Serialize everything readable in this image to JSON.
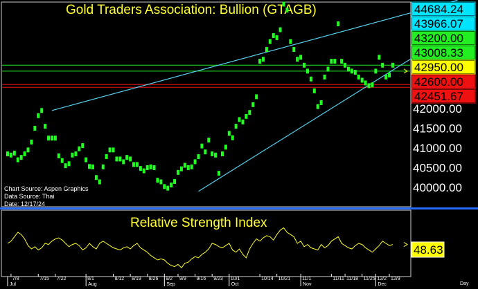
{
  "chart_data": [
    {
      "type": "scatter",
      "title": "Gold Traders Association: Bullion (GTAGB)",
      "ylim": [
        39800,
        44800
      ],
      "yticks": [
        "40000.00",
        "40500.00",
        "41000.00",
        "41500.00",
        "42000.00"
      ],
      "levels": [
        {
          "label": "44684.24",
          "value": 44684.24,
          "bg": "#00e5ff",
          "fg": "#000000"
        },
        {
          "label": "43966.07",
          "value": 43966.07,
          "bg": "#00e5ff",
          "fg": "#000000"
        },
        {
          "label": "43200.00",
          "value": 43200.0,
          "bg": "#22ee22",
          "fg": "#000000"
        },
        {
          "label": "43008.33",
          "value": 43008.33,
          "bg": "#22ee22",
          "fg": "#000000"
        },
        {
          "label": "42950.00",
          "value": 42950.0,
          "bg": "#ffff00",
          "fg": "#000000"
        },
        {
          "label": "42600.00",
          "value": 42600.0,
          "bg": "#ee1111",
          "fg": "#000000"
        },
        {
          "label": "42451.67",
          "value": 42451.67,
          "bg": "#ee1111",
          "fg": "#000000"
        }
      ],
      "hlines": [
        {
          "value": 43100,
          "color": "#22ee22"
        },
        {
          "value": 42950,
          "color": "#22ee22"
        },
        {
          "value": 42610,
          "color": "#ee1111"
        },
        {
          "value": 42540,
          "color": "#ee1111"
        }
      ],
      "trendlines": [
        {
          "x1": 13,
          "y1": 41950,
          "x2": 132,
          "y2": 44750,
          "color": "#5ad0f0"
        },
        {
          "x1": 56,
          "y1": 39900,
          "x2": 132,
          "y2": 44000,
          "color": "#5ad0f0"
        }
      ],
      "x_dates": [
        "7/8",
        "7/15",
        "7/22",
        "8/1",
        "8/12",
        "8/19",
        "8/26",
        "9/2",
        "9/9",
        "9/16",
        "9/23",
        "10/1",
        "10/14",
        "10/21",
        "11/1",
        "11/11",
        "11/18",
        "11/25",
        "12/2",
        "12/9"
      ],
      "x_date_index": [
        1,
        9,
        14,
        23,
        31,
        36,
        41,
        46,
        50,
        55,
        60,
        65,
        74,
        79,
        86,
        95,
        99,
        104,
        108,
        112
      ],
      "x_months": [
        "Jul",
        "Aug",
        "Sep",
        "Oct",
        "Nov",
        "Dec"
      ],
      "x_month_index": [
        0,
        23,
        46,
        65,
        86,
        108
      ],
      "x_unit": "Day",
      "points": [
        [
          0,
          40850
        ],
        [
          1,
          40820
        ],
        [
          2,
          40870
        ],
        [
          3,
          40700
        ],
        [
          4,
          40760
        ],
        [
          5,
          40850
        ],
        [
          6,
          40950
        ],
        [
          7,
          41150
        ],
        [
          8,
          41500
        ],
        [
          9,
          41820
        ],
        [
          10,
          41950
        ],
        [
          11,
          41550
        ],
        [
          12,
          41250
        ],
        [
          13,
          41250
        ],
        [
          14,
          41250
        ],
        [
          15,
          40800
        ],
        [
          16,
          40680
        ],
        [
          17,
          40550
        ],
        [
          18,
          40600
        ],
        [
          19,
          40820
        ],
        [
          20,
          40850
        ],
        [
          21,
          40980
        ],
        [
          22,
          41060
        ],
        [
          23,
          40700
        ],
        [
          24,
          40530
        ],
        [
          25,
          40520
        ],
        [
          26,
          40250
        ],
        [
          27,
          40140
        ],
        [
          28,
          40520
        ],
        [
          29,
          40780
        ],
        [
          30,
          40950
        ],
        [
          31,
          40950
        ],
        [
          32,
          40720
        ],
        [
          33,
          40720
        ],
        [
          34,
          40650
        ],
        [
          35,
          40760
        ],
        [
          36,
          40720
        ],
        [
          37,
          40580
        ],
        [
          38,
          40580
        ],
        [
          39,
          40480
        ],
        [
          40,
          40420
        ],
        [
          41,
          40500
        ],
        [
          42,
          40520
        ],
        [
          43,
          40500
        ],
        [
          44,
          40180
        ],
        [
          45,
          40140
        ],
        [
          46,
          40020
        ],
        [
          47,
          39980
        ],
        [
          48,
          40060
        ],
        [
          49,
          40150
        ],
        [
          50,
          40380
        ],
        [
          51,
          40470
        ],
        [
          52,
          40560
        ],
        [
          53,
          40500
        ],
        [
          54,
          40520
        ],
        [
          55,
          40650
        ],
        [
          56,
          40780
        ],
        [
          57,
          41050
        ],
        [
          58,
          40900
        ],
        [
          59,
          41200
        ],
        [
          60,
          40850
        ],
        [
          61,
          40820
        ],
        [
          62,
          40360
        ],
        [
          63,
          40850
        ],
        [
          64,
          41020
        ],
        [
          65,
          41370
        ],
        [
          66,
          41260
        ],
        [
          67,
          41550
        ],
        [
          68,
          41720
        ],
        [
          69,
          41660
        ],
        [
          70,
          41800
        ],
        [
          71,
          41900
        ],
        [
          72,
          42100
        ],
        [
          73,
          42300
        ],
        [
          74,
          43200
        ],
        [
          75,
          43250
        ],
        [
          76,
          43500
        ],
        [
          77,
          43700
        ],
        [
          78,
          43850
        ],
        [
          79,
          43800
        ],
        [
          80,
          44000
        ],
        [
          81,
          44650
        ],
        [
          82,
          44500
        ],
        [
          83,
          43700
        ],
        [
          84,
          43500
        ],
        [
          85,
          43250
        ],
        [
          86,
          43300
        ],
        [
          87,
          43100
        ],
        [
          88,
          42950
        ],
        [
          89,
          42750
        ],
        [
          90,
          42450
        ],
        [
          91,
          42050
        ],
        [
          92,
          42150
        ],
        [
          93,
          42800
        ],
        [
          94,
          43000
        ],
        [
          95,
          43200
        ],
        [
          96,
          43200
        ],
        [
          97,
          44150
        ],
        [
          98,
          43200
        ],
        [
          99,
          43100
        ],
        [
          100,
          43000
        ],
        [
          101,
          42950
        ],
        [
          102,
          42920
        ],
        [
          103,
          42800
        ],
        [
          104,
          42720
        ],
        [
          105,
          42650
        ],
        [
          106,
          42580
        ],
        [
          107,
          42600
        ],
        [
          108,
          42950
        ],
        [
          109,
          43300
        ],
        [
          110,
          43100
        ],
        [
          111,
          42800
        ],
        [
          112,
          42850
        ],
        [
          113,
          43100
        ]
      ]
    },
    {
      "type": "line",
      "title": "Relative Strength Index",
      "last_label": "48.63",
      "ylim": [
        20,
        80
      ],
      "values": [
        50,
        52,
        56,
        60,
        58,
        54,
        48,
        45,
        47,
        44,
        46,
        50,
        49,
        52,
        54,
        55,
        53,
        50,
        47,
        49,
        50,
        48,
        44,
        46,
        50,
        47,
        45,
        50,
        52,
        50,
        48,
        46,
        45,
        44,
        46,
        47,
        45,
        48,
        50,
        46,
        44,
        42,
        39,
        37,
        35,
        36,
        35,
        32,
        30,
        29,
        31,
        28,
        32,
        33,
        36,
        38,
        37,
        40,
        42,
        45,
        50,
        49,
        47,
        46,
        48,
        50,
        44,
        42,
        45,
        40,
        37,
        45,
        50,
        54,
        52,
        55,
        57,
        56,
        53,
        58,
        62,
        64,
        60,
        58,
        56,
        50,
        52,
        47,
        49,
        46,
        45,
        44,
        49,
        46,
        48,
        52,
        54,
        56,
        50,
        48,
        46,
        45,
        48,
        50,
        49,
        46,
        44,
        42,
        45,
        48,
        52,
        50,
        48,
        49
      ]
    }
  ]
}
